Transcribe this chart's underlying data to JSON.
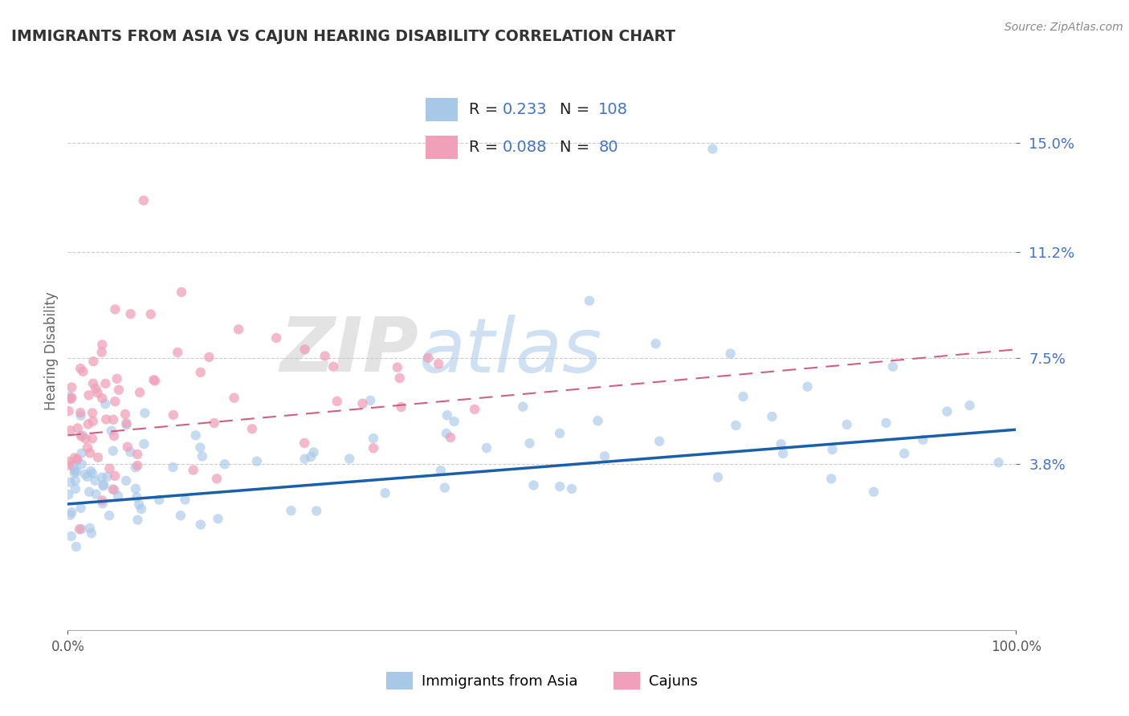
{
  "title": "IMMIGRANTS FROM ASIA VS CAJUN HEARING DISABILITY CORRELATION CHART",
  "source": "Source: ZipAtlas.com",
  "ylabel": "Hearing Disability",
  "xlim": [
    0.0,
    100.0
  ],
  "ylim": [
    -2.0,
    17.5
  ],
  "yticks": [
    3.8,
    7.5,
    11.2,
    15.0
  ],
  "xtick_vals": [
    0.0,
    100.0
  ],
  "series1": {
    "name": "Immigrants from Asia",
    "dot_color": "#a8c8e8",
    "R": 0.233,
    "N": 108,
    "line_color": "#1a5faa",
    "trend_x": [
      0,
      100
    ],
    "trend_y": [
      2.4,
      5.0
    ]
  },
  "series2": {
    "name": "Cajuns",
    "dot_color": "#f0a0b8",
    "R": 0.088,
    "N": 80,
    "line_color": "#d06080",
    "trend_x": [
      0,
      100
    ],
    "trend_y": [
      4.8,
      7.8
    ]
  },
  "background_color": "#ffffff",
  "grid_color": "#cccccc",
  "title_color": "#333333",
  "tick_color": "#4472c4",
  "legend_color": "#4472c4",
  "axis_label_color": "#666666",
  "watermark_zip_color": "#cccccc",
  "watermark_atlas_color": "#a8c8e8"
}
